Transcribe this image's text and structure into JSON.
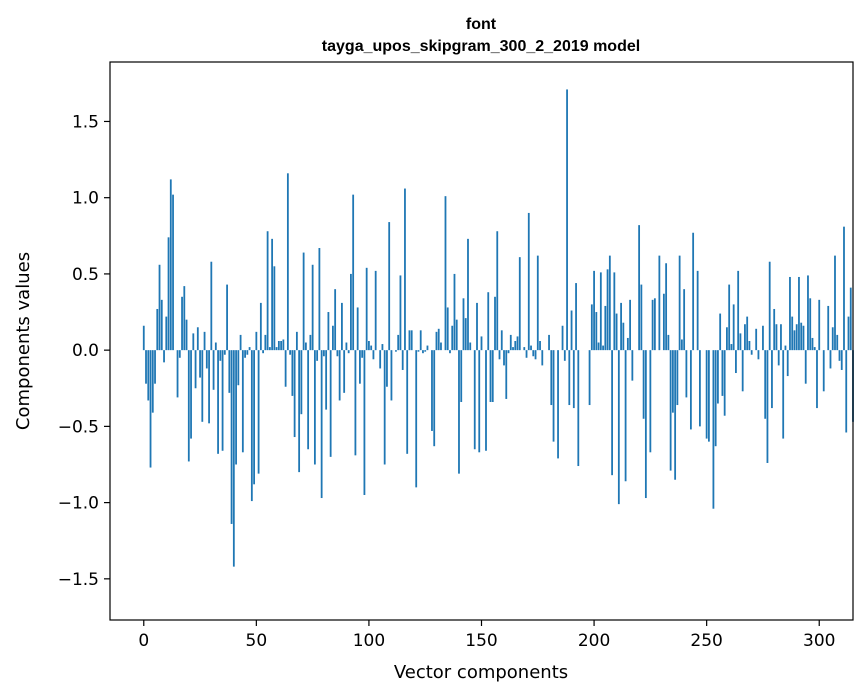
{
  "chart_data": {
    "type": "bar",
    "title": "font",
    "subtitle": "tayga_upos_skipgram_300_2_2019 model",
    "xlabel": "Vector components",
    "ylabel": "Components values",
    "xlim": [
      -15,
      315
    ],
    "ylim": [
      -1.77,
      1.89
    ],
    "xticks": [
      0,
      50,
      100,
      150,
      200,
      250,
      300
    ],
    "yticks": [
      -1.5,
      -1.0,
      -0.5,
      0.0,
      0.5,
      1.0,
      1.5
    ],
    "ytick_labels": [
      "−1.5",
      "−1.0",
      "−0.5",
      "0.0",
      "0.5",
      "1.0",
      "1.5"
    ],
    "bar_color": "#1f77b4",
    "grid": false,
    "values": [
      0.16,
      -0.22,
      -0.33,
      -0.77,
      -0.41,
      -0.22,
      0.27,
      0.56,
      0.33,
      -0.08,
      0.22,
      0.74,
      1.12,
      1.02,
      0.0,
      -0.31,
      -0.05,
      0.35,
      0.42,
      0.2,
      -0.73,
      -0.58,
      0.11,
      -0.25,
      0.15,
      -0.18,
      -0.47,
      0.12,
      -0.12,
      -0.48,
      0.58,
      -0.26,
      0.05,
      -0.68,
      -0.07,
      -0.66,
      -0.03,
      0.43,
      -0.28,
      -1.14,
      -1.42,
      -0.75,
      -0.23,
      0.1,
      -0.67,
      -0.05,
      -0.03,
      0.02,
      -0.99,
      -0.88,
      0.12,
      -0.81,
      0.31,
      -0.02,
      0.1,
      0.78,
      0.02,
      0.73,
      0.55,
      0.02,
      0.06,
      0.06,
      0.07,
      -0.24,
      1.16,
      -0.03,
      -0.3,
      -0.57,
      0.12,
      -0.8,
      -0.42,
      0.64,
      0.05,
      -0.65,
      0.1,
      0.56,
      -0.75,
      -0.07,
      0.67,
      -0.97,
      -0.04,
      -0.39,
      0.25,
      -0.7,
      0.16,
      0.4,
      -0.04,
      -0.33,
      0.31,
      -0.28,
      0.05,
      -0.02,
      0.5,
      1.02,
      -0.69,
      0.28,
      -0.22,
      -0.05,
      -0.95,
      0.54,
      0.06,
      0.03,
      -0.06,
      0.52,
      0.0,
      -0.12,
      0.04,
      -0.75,
      -0.24,
      0.84,
      -0.33,
      0.0,
      -0.01,
      0.1,
      0.49,
      -0.13,
      1.06,
      -0.68,
      0.13,
      0.13,
      0.0,
      -0.9,
      -0.01,
      0.13,
      -0.02,
      -0.01,
      0.03,
      0.0,
      -0.53,
      -0.63,
      0.12,
      0.14,
      0.05,
      0.0,
      1.01,
      0.28,
      -0.02,
      0.16,
      0.5,
      0.2,
      -0.81,
      -0.34,
      0.34,
      0.21,
      0.73,
      0.05,
      0.0,
      -0.65,
      0.31,
      -0.67,
      0.09,
      0.0,
      -0.66,
      0.38,
      -0.34,
      -0.34,
      0.35,
      0.78,
      -0.06,
      0.13,
      -0.1,
      -0.32,
      -0.02,
      0.1,
      0.02,
      0.06,
      0.09,
      0.61,
      0.0,
      0.02,
      -0.05,
      0.9,
      0.03,
      -0.04,
      -0.06,
      0.62,
      0.06,
      -0.1,
      0.0,
      0.0,
      0.1,
      -0.36,
      -0.6,
      0.0,
      -0.71,
      0.0,
      0.16,
      -0.07,
      1.71,
      -0.36,
      0.26,
      -0.38,
      0.44,
      -0.76,
      0.0,
      0.0,
      0.0,
      0.0,
      -0.36,
      0.3,
      0.52,
      0.25,
      0.05,
      0.51,
      0.03,
      0.29,
      0.53,
      0.62,
      -0.82,
      0.51,
      0.24,
      -1.01,
      0.31,
      0.18,
      -0.86,
      0.08,
      0.33,
      -0.2,
      0.0,
      0.0,
      0.82,
      0.43,
      -0.45,
      -0.97,
      0.0,
      -0.67,
      0.33,
      0.34,
      0.0,
      0.62,
      0.0,
      0.37,
      0.57,
      0.1,
      -0.79,
      -0.41,
      -0.85,
      -0.36,
      0.62,
      0.07,
      0.4,
      -0.31,
      0.0,
      -0.52,
      0.77,
      0.0,
      0.52,
      -0.5,
      0.0,
      0.0,
      -0.58,
      -0.6,
      0.0,
      -1.04,
      -0.63,
      -0.35,
      0.24,
      -0.3,
      -0.43,
      0.15,
      0.43,
      0.04,
      0.3,
      -0.15,
      0.52,
      0.11,
      -0.27,
      0.17,
      0.22,
      0.06,
      -0.03,
      0.0,
      0.14,
      -0.06,
      0.0,
      0.16,
      -0.45,
      -0.74,
      0.58,
      -0.38,
      0.27,
      0.17,
      -0.1,
      0.17,
      -0.58,
      0.03,
      -0.17,
      0.48,
      0.22,
      0.13,
      0.17,
      0.48,
      0.18,
      0.16,
      -0.22,
      0.49,
      0.34,
      0.08,
      0.02,
      -0.38,
      0.33,
      0.0,
      -0.27,
      0.0,
      0.29,
      -0.12,
      0.15,
      0.62,
      0.1,
      -0.07,
      -0.13,
      0.81,
      -0.54,
      0.22,
      0.41,
      -0.47
    ]
  }
}
